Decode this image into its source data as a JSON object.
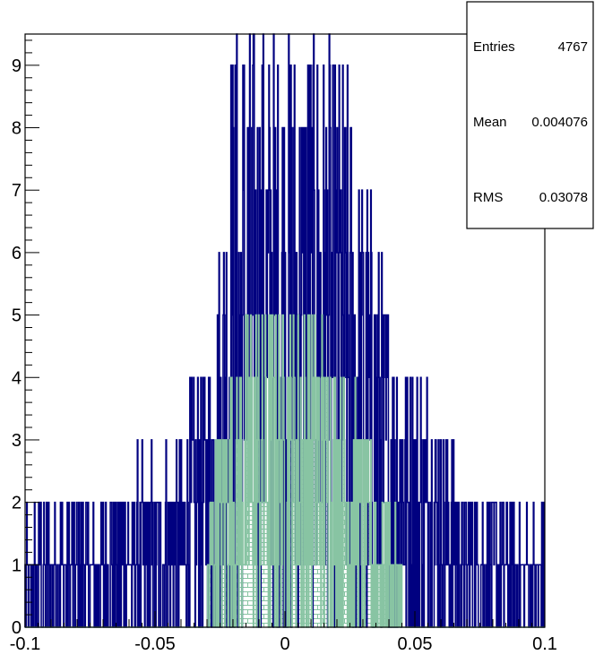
{
  "chart_data": {
    "type": "histogram",
    "title": "",
    "xlabel": "",
    "ylabel": "",
    "xlim": [
      -0.1,
      0.1
    ],
    "ylim": [
      0,
      9.5
    ],
    "x_ticks": [
      -0.1,
      -0.05,
      0,
      0.05,
      0.1
    ],
    "x_tick_labels": [
      "-0.1",
      "-0.05",
      "0",
      "0.05",
      "0.1"
    ],
    "y_ticks": [
      0,
      1,
      2,
      3,
      4,
      5,
      6,
      7,
      8,
      9
    ],
    "y_tick_labels": [
      "0",
      "1",
      "2",
      "3",
      "4",
      "5",
      "6",
      "7",
      "8",
      "9"
    ],
    "grid": false,
    "series": [
      {
        "color": "#000080",
        "fill": "none",
        "bins": 1000,
        "envelope": [
          [
            -0.1,
            1.2
          ],
          [
            -0.09,
            1.6
          ],
          [
            -0.08,
            1.6
          ],
          [
            -0.07,
            1.8
          ],
          [
            -0.06,
            2.0
          ],
          [
            -0.05,
            2.3
          ],
          [
            -0.04,
            2.7
          ],
          [
            -0.03,
            4.0
          ],
          [
            -0.025,
            6.0
          ],
          [
            -0.02,
            9.5
          ],
          [
            -0.01,
            9.5
          ],
          [
            0.0,
            9.5
          ],
          [
            0.01,
            9.5
          ],
          [
            0.02,
            9.0
          ],
          [
            0.03,
            7.0
          ],
          [
            0.035,
            6.0
          ],
          [
            0.04,
            5.0
          ],
          [
            0.05,
            4.0
          ],
          [
            0.06,
            3.0
          ],
          [
            0.07,
            2.0
          ],
          [
            0.08,
            2.0
          ],
          [
            0.09,
            1.6
          ],
          [
            0.1,
            1.2
          ]
        ]
      },
      {
        "color": "#88c4a3",
        "fill": "hatched",
        "bins": 1000,
        "range": [
          -0.03,
          0.045
        ],
        "envelope": [
          [
            -0.03,
            1.2
          ],
          [
            -0.025,
            3.0
          ],
          [
            -0.02,
            4.0
          ],
          [
            -0.01,
            5.0
          ],
          [
            0.0,
            5.0
          ],
          [
            0.01,
            5.0
          ],
          [
            0.02,
            4.0
          ],
          [
            0.03,
            3.0
          ],
          [
            0.035,
            2.0
          ],
          [
            0.04,
            1.5
          ],
          [
            0.045,
            1.0
          ]
        ]
      }
    ]
  },
  "stats": {
    "entries_label": "Entries",
    "entries_value": "4767",
    "mean_label": "Mean",
    "mean_value": "0.004076",
    "rms_label": "RMS",
    "rms_value": "0.03078"
  }
}
